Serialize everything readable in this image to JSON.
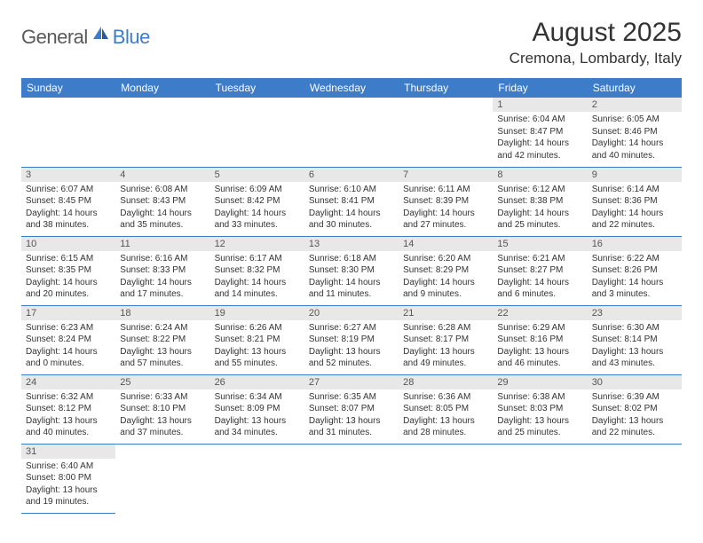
{
  "logo": {
    "general": "General",
    "blue": "Blue"
  },
  "title": "August 2025",
  "location": "Cremona, Lombardy, Italy",
  "header_color": "#3d7cc9",
  "day_number_bg": "#e8e8e8",
  "day_headers": [
    "Sunday",
    "Monday",
    "Tuesday",
    "Wednesday",
    "Thursday",
    "Friday",
    "Saturday"
  ],
  "weeks": [
    [
      null,
      null,
      null,
      null,
      null,
      {
        "n": "1",
        "sunrise": "6:04 AM",
        "sunset": "8:47 PM",
        "dl": "14 hours and 42 minutes."
      },
      {
        "n": "2",
        "sunrise": "6:05 AM",
        "sunset": "8:46 PM",
        "dl": "14 hours and 40 minutes."
      }
    ],
    [
      {
        "n": "3",
        "sunrise": "6:07 AM",
        "sunset": "8:45 PM",
        "dl": "14 hours and 38 minutes."
      },
      {
        "n": "4",
        "sunrise": "6:08 AM",
        "sunset": "8:43 PM",
        "dl": "14 hours and 35 minutes."
      },
      {
        "n": "5",
        "sunrise": "6:09 AM",
        "sunset": "8:42 PM",
        "dl": "14 hours and 33 minutes."
      },
      {
        "n": "6",
        "sunrise": "6:10 AM",
        "sunset": "8:41 PM",
        "dl": "14 hours and 30 minutes."
      },
      {
        "n": "7",
        "sunrise": "6:11 AM",
        "sunset": "8:39 PM",
        "dl": "14 hours and 27 minutes."
      },
      {
        "n": "8",
        "sunrise": "6:12 AM",
        "sunset": "8:38 PM",
        "dl": "14 hours and 25 minutes."
      },
      {
        "n": "9",
        "sunrise": "6:14 AM",
        "sunset": "8:36 PM",
        "dl": "14 hours and 22 minutes."
      }
    ],
    [
      {
        "n": "10",
        "sunrise": "6:15 AM",
        "sunset": "8:35 PM",
        "dl": "14 hours and 20 minutes."
      },
      {
        "n": "11",
        "sunrise": "6:16 AM",
        "sunset": "8:33 PM",
        "dl": "14 hours and 17 minutes."
      },
      {
        "n": "12",
        "sunrise": "6:17 AM",
        "sunset": "8:32 PM",
        "dl": "14 hours and 14 minutes."
      },
      {
        "n": "13",
        "sunrise": "6:18 AM",
        "sunset": "8:30 PM",
        "dl": "14 hours and 11 minutes."
      },
      {
        "n": "14",
        "sunrise": "6:20 AM",
        "sunset": "8:29 PM",
        "dl": "14 hours and 9 minutes."
      },
      {
        "n": "15",
        "sunrise": "6:21 AM",
        "sunset": "8:27 PM",
        "dl": "14 hours and 6 minutes."
      },
      {
        "n": "16",
        "sunrise": "6:22 AM",
        "sunset": "8:26 PM",
        "dl": "14 hours and 3 minutes."
      }
    ],
    [
      {
        "n": "17",
        "sunrise": "6:23 AM",
        "sunset": "8:24 PM",
        "dl": "14 hours and 0 minutes."
      },
      {
        "n": "18",
        "sunrise": "6:24 AM",
        "sunset": "8:22 PM",
        "dl": "13 hours and 57 minutes."
      },
      {
        "n": "19",
        "sunrise": "6:26 AM",
        "sunset": "8:21 PM",
        "dl": "13 hours and 55 minutes."
      },
      {
        "n": "20",
        "sunrise": "6:27 AM",
        "sunset": "8:19 PM",
        "dl": "13 hours and 52 minutes."
      },
      {
        "n": "21",
        "sunrise": "6:28 AM",
        "sunset": "8:17 PM",
        "dl": "13 hours and 49 minutes."
      },
      {
        "n": "22",
        "sunrise": "6:29 AM",
        "sunset": "8:16 PM",
        "dl": "13 hours and 46 minutes."
      },
      {
        "n": "23",
        "sunrise": "6:30 AM",
        "sunset": "8:14 PM",
        "dl": "13 hours and 43 minutes."
      }
    ],
    [
      {
        "n": "24",
        "sunrise": "6:32 AM",
        "sunset": "8:12 PM",
        "dl": "13 hours and 40 minutes."
      },
      {
        "n": "25",
        "sunrise": "6:33 AM",
        "sunset": "8:10 PM",
        "dl": "13 hours and 37 minutes."
      },
      {
        "n": "26",
        "sunrise": "6:34 AM",
        "sunset": "8:09 PM",
        "dl": "13 hours and 34 minutes."
      },
      {
        "n": "27",
        "sunrise": "6:35 AM",
        "sunset": "8:07 PM",
        "dl": "13 hours and 31 minutes."
      },
      {
        "n": "28",
        "sunrise": "6:36 AM",
        "sunset": "8:05 PM",
        "dl": "13 hours and 28 minutes."
      },
      {
        "n": "29",
        "sunrise": "6:38 AM",
        "sunset": "8:03 PM",
        "dl": "13 hours and 25 minutes."
      },
      {
        "n": "30",
        "sunrise": "6:39 AM",
        "sunset": "8:02 PM",
        "dl": "13 hours and 22 minutes."
      }
    ],
    [
      {
        "n": "31",
        "sunrise": "6:40 AM",
        "sunset": "8:00 PM",
        "dl": "13 hours and 19 minutes."
      },
      null,
      null,
      null,
      null,
      null,
      null
    ]
  ]
}
